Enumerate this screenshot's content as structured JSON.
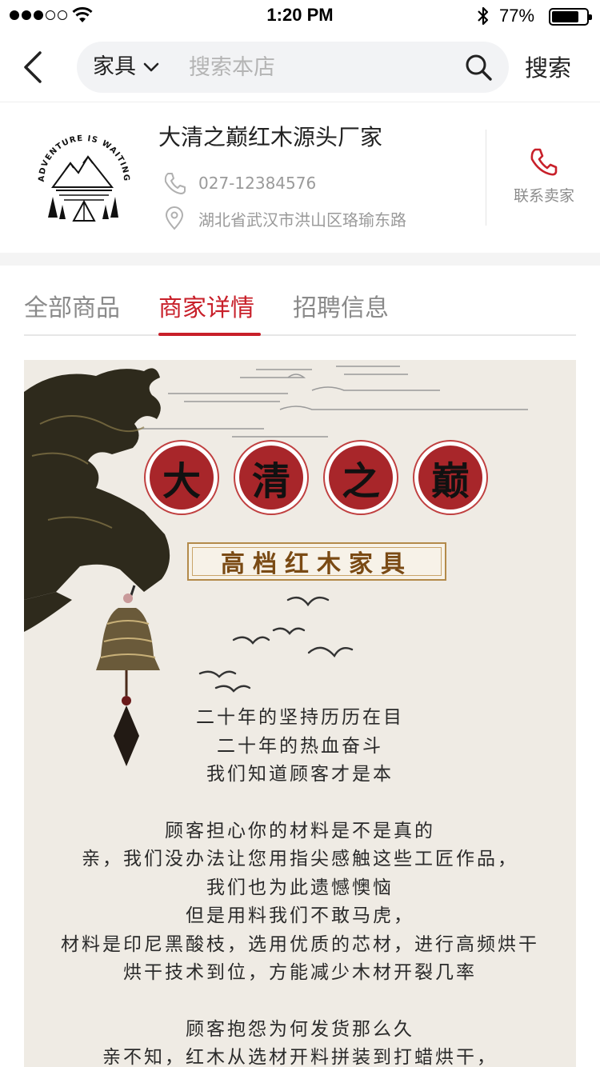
{
  "status_bar": {
    "time": "1:20 PM",
    "battery_percent": "77%",
    "battery_level": 0.77
  },
  "nav": {
    "scope_label": "家具",
    "search_placeholder": "搜索本店",
    "search_button": "搜索"
  },
  "store": {
    "name": "大清之巅红木源头厂家",
    "phone": "027-12384576",
    "address": "湖北省武汉市洪山区珞瑜东路",
    "contact_label": "联系卖家",
    "logo_text": "ADVENTURE IS WAITING"
  },
  "tabs": [
    {
      "label": "全部商品",
      "active": false
    },
    {
      "label": "商家详情",
      "active": true
    },
    {
      "label": "招聘信息",
      "active": false
    }
  ],
  "banner": {
    "seal_chars": [
      "大",
      "清",
      "之",
      "巅"
    ],
    "subtitle": "高档红木家具",
    "poem_block_1": [
      "二十年的坚持历历在目",
      "二十年的热血奋斗",
      "我们知道顾客才是本"
    ],
    "poem_block_2": [
      "顾客担心你的材料是不是真的",
      "亲，我们没办法让您用指尖感触这些工匠作品，",
      "我们也为此遗憾懊恼",
      "但是用料我们不敢马虎，",
      "材料是印尼黑酸枝，选用优质的芯材，进行高频烘干",
      "烘干技术到位，方能减少木材开裂几率"
    ],
    "poem_block_3": [
      "顾客抱怨为何发货那么久",
      "亲不知，红木从选材开料拼装到打蜡烘干，"
    ]
  },
  "colors": {
    "accent_red": "#c8202a",
    "seal_red": "#a8262a",
    "banner_bg": "#efebe4",
    "gold": "#b38a4a"
  }
}
